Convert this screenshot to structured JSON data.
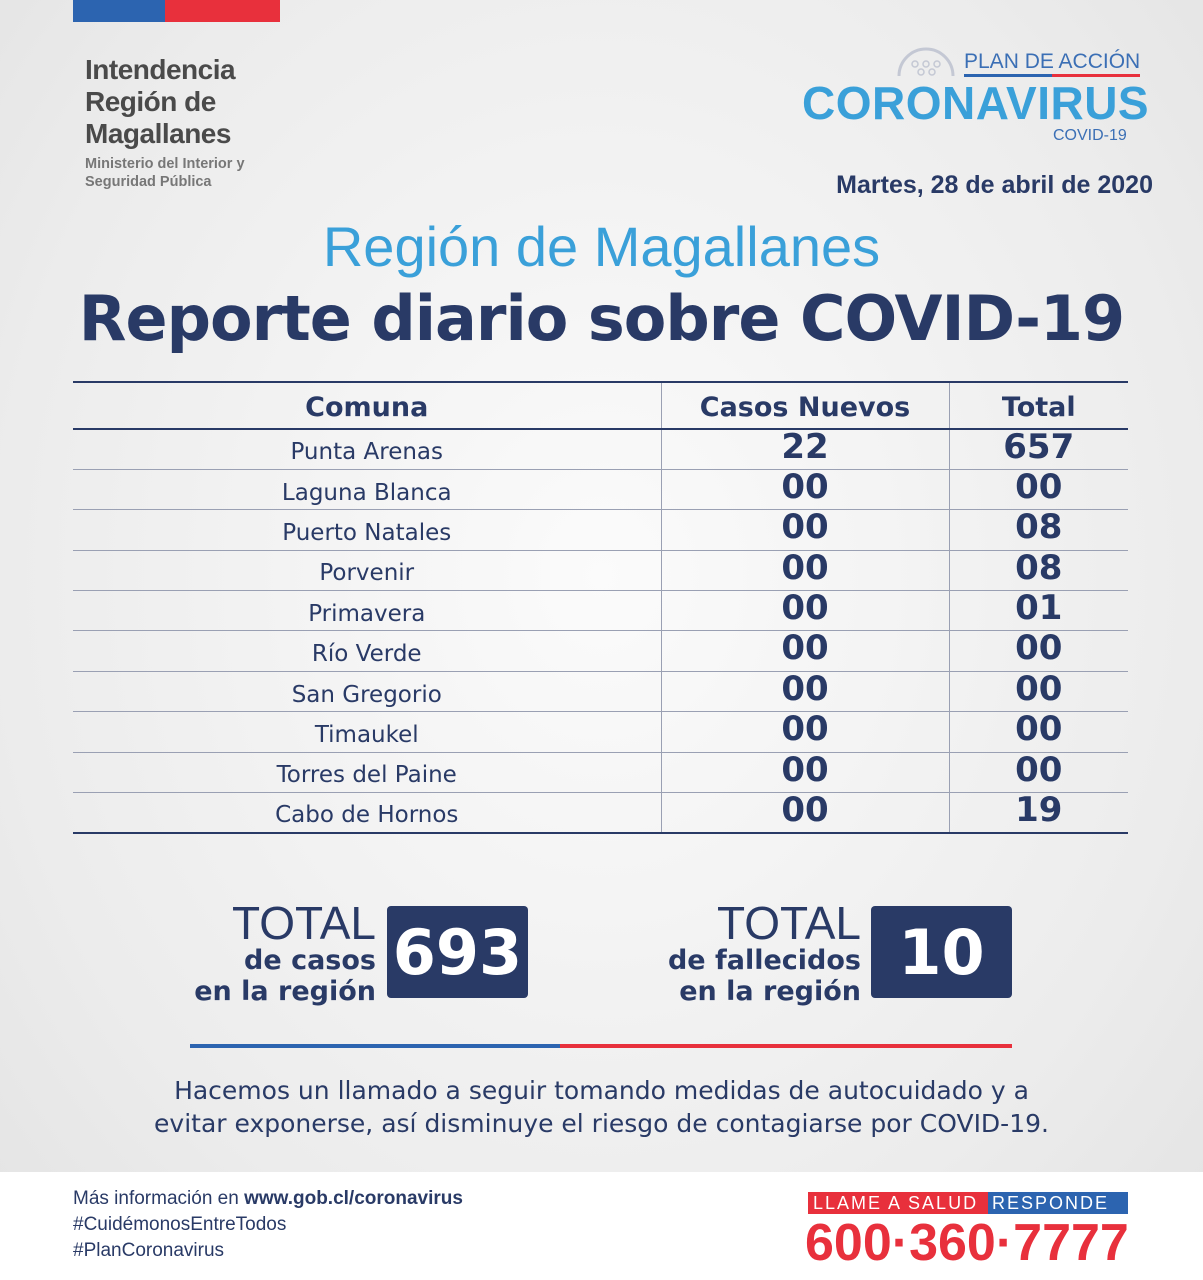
{
  "header": {
    "institution": [
      "Intendencia",
      "Región de",
      "Magallanes"
    ],
    "ministry": [
      "Ministerio del Interior y",
      "Seguridad Pública"
    ],
    "logo": {
      "plan": "PLAN DE ACCIÓN",
      "name": "CORONAVIRUS",
      "sub": "COVID-19"
    },
    "date": "Martes, 28 de abril de 2020"
  },
  "title": {
    "region": "Región de Magallanes",
    "report": "Reporte diario sobre COVID-19"
  },
  "table": {
    "headers": [
      "Comuna",
      "Casos Nuevos",
      "Total"
    ],
    "rows": [
      [
        "Punta Arenas",
        "22",
        "657"
      ],
      [
        "Laguna Blanca",
        "00",
        "00"
      ],
      [
        "Puerto Natales",
        "00",
        "08"
      ],
      [
        "Porvenir",
        "00",
        "08"
      ],
      [
        "Primavera",
        "00",
        "01"
      ],
      [
        "Río Verde",
        "00",
        "00"
      ],
      [
        "San Gregorio",
        "00",
        "00"
      ],
      [
        "Timaukel",
        "00",
        "00"
      ],
      [
        "Torres del Paine",
        "00",
        "00"
      ],
      [
        "Cabo de Hornos",
        "00",
        "19"
      ]
    ]
  },
  "totals": {
    "cases": {
      "l1": "TOTAL",
      "l2": "de casos",
      "l3": "en la región",
      "value": "693"
    },
    "deaths": {
      "l1": "TOTAL",
      "l2": "de fallecidos",
      "l3": "en la región",
      "value": "10"
    }
  },
  "message": [
    "Hacemos un llamado a seguir tomando medidas de autocuidado y a",
    "evitar exponerse, así disminuye el riesgo de contagiarse por COVID-19."
  ],
  "footer": {
    "info_prefix": "Más información en ",
    "info_url": "www.gob.cl/coronavirus",
    "tag1": "#CuidémonosEntreTodos",
    "tag2": "#PlanCoronavirus",
    "llame": "LLAME A SALUD",
    "responde": "RESPONDE",
    "phone": "600·360·7777"
  },
  "colors": {
    "navy": "#293a66",
    "blue": "#3aa0d9",
    "red": "#e8303c",
    "flag_blue": "#2c64b0"
  }
}
